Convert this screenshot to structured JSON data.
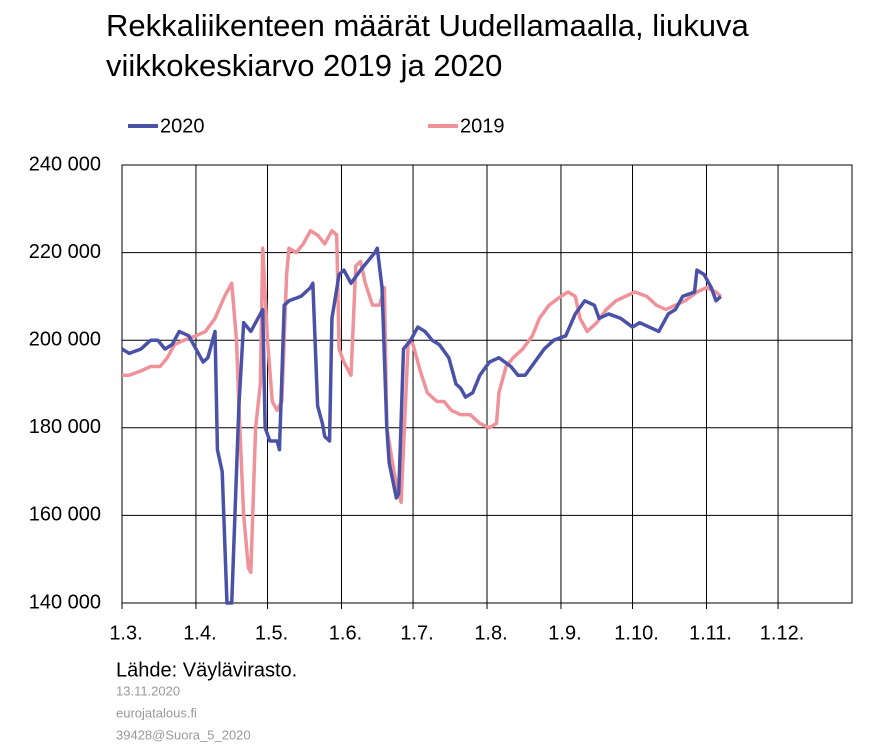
{
  "chart_data": {
    "type": "line",
    "title": "Rekkaliikenteen määrät Uudellamaalla, liukuva viikkokeskiarvo 2019 ja 2020",
    "source": "Lähde: Väylävirasto.",
    "footnotes": [
      "13.11.2020",
      "eurojatalous.fi",
      "39428@Suora_5_2020"
    ],
    "xlim": [
      0,
      306
    ],
    "xticks": [
      {
        "value": 0,
        "label": "1.3."
      },
      {
        "value": 31,
        "label": "1.4."
      },
      {
        "value": 61,
        "label": "1.5."
      },
      {
        "value": 92,
        "label": "1.6."
      },
      {
        "value": 122,
        "label": "1.7."
      },
      {
        "value": 153,
        "label": "1.8."
      },
      {
        "value": 184,
        "label": "1.9."
      },
      {
        "value": 214,
        "label": "1.10."
      },
      {
        "value": 245,
        "label": "1.11."
      },
      {
        "value": 275,
        "label": "1.12."
      }
    ],
    "ylim": [
      140000,
      240000
    ],
    "yticks": [
      {
        "value": 140000,
        "label": "140 000"
      },
      {
        "value": 160000,
        "label": "160 000"
      },
      {
        "value": 180000,
        "label": "180 000"
      },
      {
        "value": 200000,
        "label": "200 000"
      },
      {
        "value": 220000,
        "label": "220 000"
      },
      {
        "value": 240000,
        "label": "240 000"
      }
    ],
    "grid": true,
    "series": [
      {
        "name": "2020",
        "color": "#4a52a8",
        "x": [
          0,
          3,
          8,
          12,
          15,
          18,
          21,
          24,
          28,
          31,
          34,
          36,
          39,
          40,
          42,
          44,
          46,
          48,
          49,
          51,
          54,
          56,
          59,
          60,
          62,
          65,
          66,
          68,
          70,
          75,
          79,
          80,
          82,
          84,
          85,
          87,
          88,
          91,
          93,
          96,
          100,
          103,
          106,
          107,
          109,
          111,
          112,
          115,
          116,
          118,
          121,
          124,
          127,
          130,
          133,
          137,
          140,
          142,
          144,
          147,
          150,
          154,
          158,
          163,
          166,
          169,
          173,
          177,
          181,
          186,
          190,
          194,
          198,
          200,
          204,
          209,
          214,
          217,
          221,
          225,
          229,
          232,
          235,
          240,
          241,
          244,
          247,
          249,
          251
        ],
        "values": [
          198000,
          197000,
          198000,
          200000,
          200000,
          198000,
          199000,
          202000,
          201000,
          198000,
          195000,
          196000,
          202000,
          175000,
          170000,
          140000,
          140000,
          170000,
          185000,
          204000,
          202000,
          204000,
          207000,
          180000,
          177000,
          177000,
          175000,
          208000,
          209000,
          210000,
          212000,
          213000,
          185000,
          181000,
          178000,
          177000,
          205000,
          215000,
          216000,
          213000,
          216000,
          218000,
          220000,
          221000,
          212000,
          180000,
          172000,
          164000,
          165000,
          198000,
          200000,
          203000,
          202000,
          200000,
          199000,
          196000,
          190000,
          189000,
          187000,
          188000,
          192000,
          195000,
          196000,
          194000,
          192000,
          192000,
          195000,
          198000,
          200000,
          201000,
          206000,
          209000,
          208000,
          205000,
          206000,
          205000,
          203000,
          204000,
          203000,
          202000,
          206000,
          207000,
          210000,
          211000,
          216000,
          215000,
          212000,
          209000,
          210000
        ]
      },
      {
        "name": "2019",
        "color": "#f0929a",
        "x": [
          0,
          3,
          8,
          12,
          16,
          19,
          22,
          26,
          31,
          35,
          39,
          43,
          46,
          48,
          49,
          51,
          53,
          54,
          56,
          58,
          59,
          61,
          63,
          65,
          67,
          69,
          70,
          73,
          76,
          79,
          82,
          85,
          88,
          90,
          91,
          93,
          96,
          98,
          100,
          102,
          105,
          108,
          110,
          111,
          114,
          116,
          117,
          120,
          122,
          125,
          128,
          132,
          135,
          138,
          142,
          146,
          150,
          154,
          157,
          158,
          161,
          164,
          168,
          172,
          175,
          179,
          184,
          187,
          190,
          192,
          195,
          199,
          203,
          207,
          211,
          215,
          220,
          224,
          228,
          232,
          236,
          241,
          245,
          249,
          251
        ],
        "values": [
          192000,
          192000,
          193000,
          194000,
          194000,
          196000,
          199000,
          200000,
          201000,
          202000,
          205000,
          210000,
          213000,
          200000,
          185000,
          160000,
          148000,
          147000,
          180000,
          190000,
          221000,
          200000,
          186000,
          184000,
          186000,
          215000,
          221000,
          220000,
          222000,
          225000,
          224000,
          222000,
          225000,
          224000,
          198000,
          195000,
          192000,
          217000,
          218000,
          213000,
          208000,
          208000,
          212000,
          180000,
          170000,
          165000,
          163000,
          200000,
          199000,
          193000,
          188000,
          186000,
          186000,
          184000,
          183000,
          183000,
          181000,
          180000,
          181000,
          188000,
          194000,
          196000,
          198000,
          201000,
          205000,
          208000,
          210000,
          211000,
          210000,
          205000,
          202000,
          204000,
          207000,
          209000,
          210000,
          211000,
          210000,
          208000,
          207000,
          208000,
          209000,
          211000,
          212000,
          211000,
          210000
        ]
      }
    ]
  }
}
